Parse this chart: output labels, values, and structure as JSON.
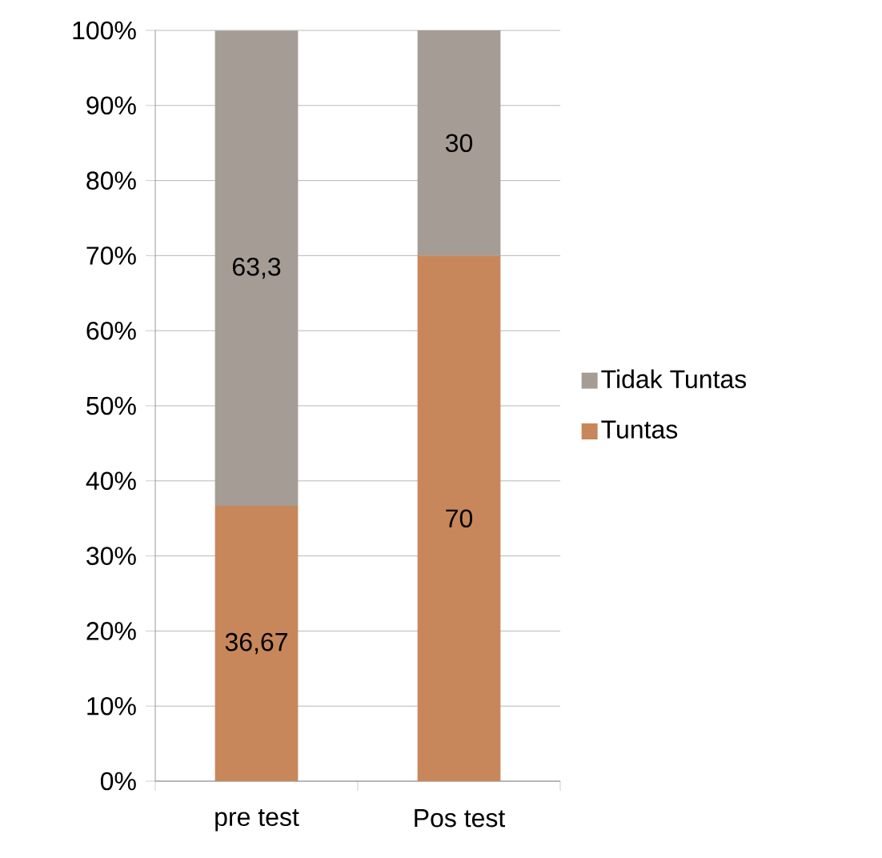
{
  "chart_data": {
    "type": "bar",
    "stacked": true,
    "categories": [
      "pre test",
      "Pos test"
    ],
    "series": [
      {
        "name": "Tuntas",
        "color": "#c8875a",
        "values": [
          36.67,
          70
        ],
        "value_labels": [
          "36,67",
          "70"
        ]
      },
      {
        "name": "Tidak Tuntas",
        "color": "#a59c95",
        "values": [
          63.3,
          30
        ],
        "value_labels": [
          "63,3",
          "30"
        ]
      }
    ],
    "ylim": [
      0,
      100
    ],
    "yticks": [
      {
        "value": 0,
        "label": "0%"
      },
      {
        "value": 10,
        "label": "10%"
      },
      {
        "value": 20,
        "label": "20%"
      },
      {
        "value": 30,
        "label": "30%"
      },
      {
        "value": 40,
        "label": "40%"
      },
      {
        "value": 50,
        "label": "50%"
      },
      {
        "value": 60,
        "label": "60%"
      },
      {
        "value": 70,
        "label": "70%"
      },
      {
        "value": 80,
        "label": "80%"
      },
      {
        "value": 90,
        "label": "90%"
      },
      {
        "value": 100,
        "label": "100%"
      }
    ],
    "grid": "y",
    "legend": "right"
  }
}
